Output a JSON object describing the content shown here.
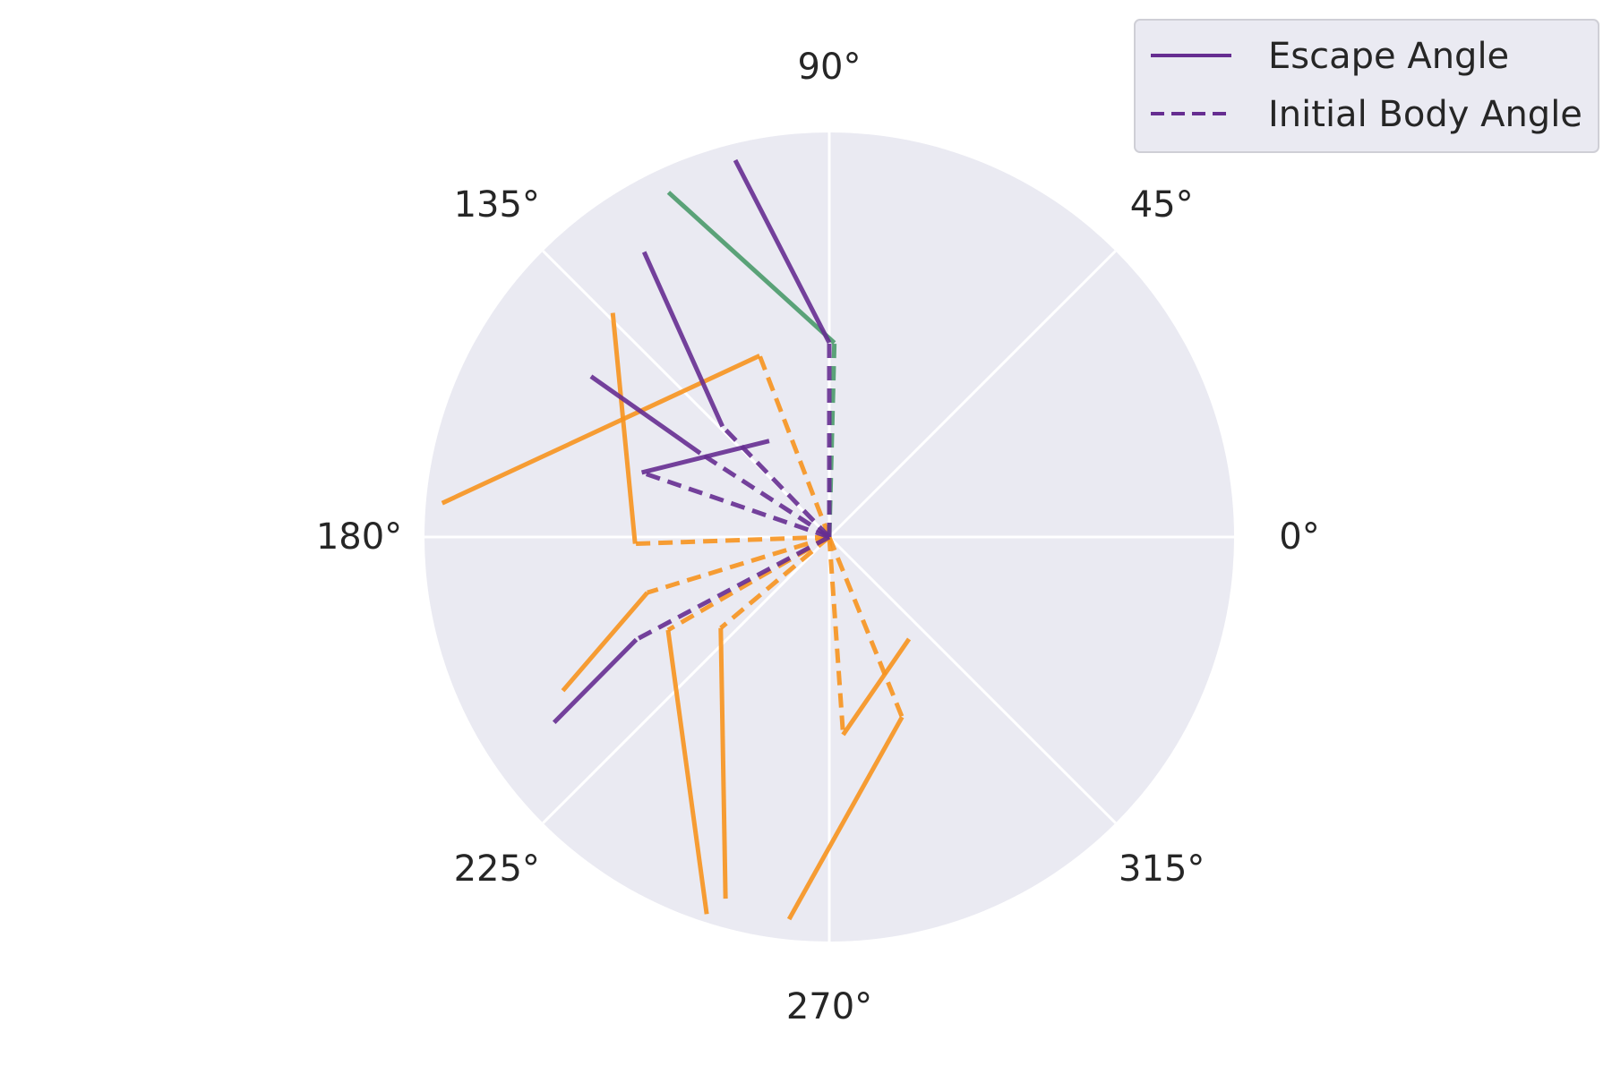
{
  "chart_data": {
    "type": "polar-line",
    "title": "",
    "radial_max": 1.0,
    "angle_ticks": [
      "0°",
      "45°",
      "90°",
      "135°",
      "180°",
      "225°",
      "270°",
      "315°"
    ],
    "angle_tick_degrees": [
      0,
      45,
      90,
      135,
      180,
      225,
      270,
      315
    ],
    "grid": true,
    "background_color": "#eaeaf2",
    "grid_color": "#ffffff",
    "legend_position": "top-right",
    "legend": [
      {
        "label": "Escape Angle",
        "style": "solid",
        "color": "#662d91"
      },
      {
        "label": "Initial Body Angle",
        "style": "dashed",
        "color": "#662d91"
      }
    ],
    "colors": {
      "purple": "#662d91",
      "orange": "#f7931e",
      "green": "#4a9a6a"
    },
    "trials": [
      {
        "color": "purple",
        "initial_body_angle": {
          "theta": 90,
          "r": 0.48
        },
        "escape_angle": {
          "theta": 104,
          "r": 0.96
        }
      },
      {
        "color": "green",
        "initial_body_angle": {
          "theta": 88.5,
          "r": 0.48
        },
        "escape_angle": {
          "theta": 115,
          "r": 0.94
        }
      },
      {
        "color": "purple",
        "initial_body_angle": {
          "theta": 134,
          "r": 0.38
        },
        "escape_angle": {
          "theta": 123,
          "r": 0.84
        }
      },
      {
        "color": "purple",
        "initial_body_angle": {
          "theta": 161,
          "r": 0.49
        },
        "escape_angle": {
          "theta": 122,
          "r": 0.28
        }
      },
      {
        "color": "orange",
        "initial_body_angle": {
          "theta": 111,
          "r": 0.48
        },
        "escape_angle": {
          "theta": 175,
          "r": 0.96
        }
      },
      {
        "color": "purple",
        "initial_body_angle": {
          "theta": 147,
          "r": 0.38
        },
        "escape_angle": {
          "theta": 146,
          "r": 0.71
        }
      },
      {
        "color": "orange",
        "initial_body_angle": {
          "theta": 182,
          "r": 0.48
        },
        "escape_angle": {
          "theta": 134,
          "r": 0.77
        }
      },
      {
        "color": "orange",
        "initial_body_angle": {
          "theta": 197,
          "r": 0.47
        },
        "escape_angle": {
          "theta": 210,
          "r": 0.76
        }
      },
      {
        "color": "purple",
        "initial_body_angle": {
          "theta": 208,
          "r": 0.54
        },
        "escape_angle": {
          "theta": 214,
          "r": 0.82
        }
      },
      {
        "color": "orange",
        "initial_body_angle": {
          "theta": 210,
          "r": 0.46
        },
        "escape_angle": {
          "theta": 252,
          "r": 0.98
        }
      },
      {
        "color": "orange",
        "initial_body_angle": {
          "theta": 220,
          "r": 0.35
        },
        "escape_angle": {
          "theta": 254,
          "r": 0.93
        }
      },
      {
        "color": "orange",
        "initial_body_angle": {
          "theta": 274,
          "r": 0.49
        },
        "escape_angle": {
          "theta": 308,
          "r": 0.32
        }
      },
      {
        "color": "orange",
        "initial_body_angle": {
          "theta": 292,
          "r": 0.48
        },
        "escape_angle": {
          "theta": 264,
          "r": 0.95
        }
      }
    ]
  }
}
